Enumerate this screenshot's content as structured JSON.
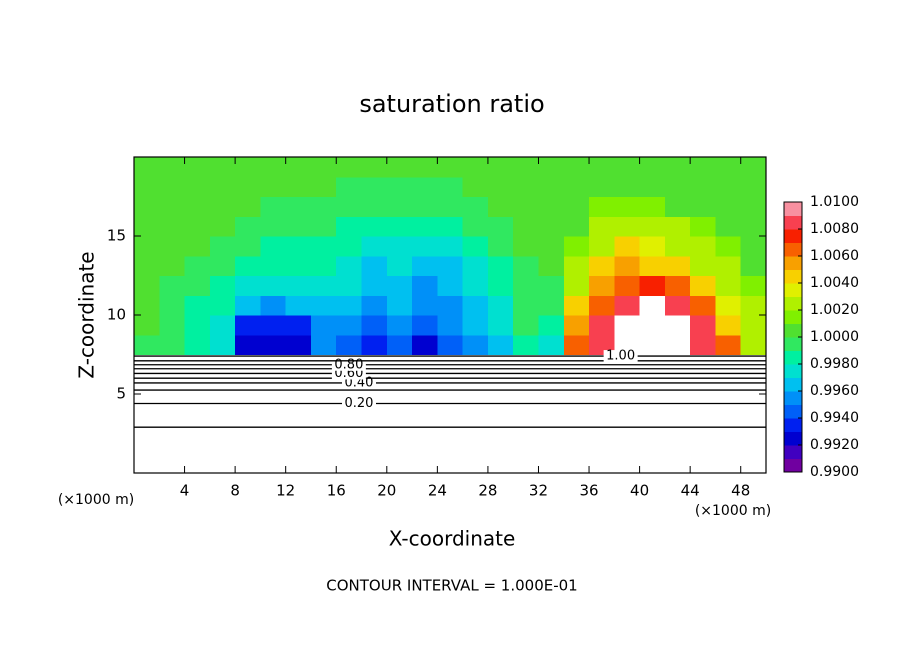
{
  "chart_data": {
    "type": "contour",
    "title": "saturation ratio",
    "x_label": "X-coordinate",
    "y_label": "Z-coordinate",
    "x_unit": "(×1000 m)",
    "y_unit": "(×1000 m)",
    "footnote": "CONTOUR INTERVAL = 1.000E-01",
    "xlim": [
      0,
      50
    ],
    "ylim": [
      0,
      20
    ],
    "xticks": [
      4,
      8,
      12,
      16,
      20,
      24,
      28,
      32,
      36,
      40,
      44,
      48
    ],
    "yticks": [
      5,
      10,
      15
    ],
    "x": [
      1,
      3,
      5,
      7,
      9,
      11,
      13,
      15,
      17,
      19,
      21,
      23,
      25,
      27,
      29,
      31,
      33,
      35,
      37,
      39,
      41,
      43,
      45,
      47,
      49
    ],
    "y": [
      8.125,
      9.375,
      10.625,
      11.875,
      13.125,
      14.375,
      15.625,
      16.875,
      18.125,
      19.375
    ],
    "z": [
      [
        0.9995,
        0.999,
        0.9985,
        0.9975,
        0.9925,
        0.992,
        0.9925,
        0.995,
        0.9945,
        0.9935,
        0.994,
        0.9925,
        0.994,
        0.995,
        0.996,
        0.9985,
        0.9975,
        1.006,
        1.0085,
        1.012,
        1.012,
        1.012,
        1.009,
        1.006,
        1.003
      ],
      [
        1.0,
        0.999,
        0.998,
        0.9975,
        0.9935,
        0.993,
        0.9935,
        0.9955,
        0.995,
        0.9945,
        0.995,
        0.994,
        0.995,
        0.996,
        0.997,
        0.999,
        0.998,
        1.0055,
        1.008,
        1.011,
        1.012,
        1.0115,
        1.008,
        1.005,
        1.0025
      ],
      [
        1.0,
        0.9995,
        0.9985,
        0.998,
        0.996,
        0.9955,
        0.996,
        0.9965,
        0.996,
        0.9955,
        0.996,
        0.995,
        0.9955,
        0.9965,
        0.9975,
        0.9995,
        0.999,
        1.0045,
        1.007,
        1.009,
        1.0105,
        1.0085,
        1.006,
        1.0035,
        1.002
      ],
      [
        1.0,
        0.9995,
        0.999,
        0.9985,
        0.9975,
        0.997,
        0.9975,
        0.9975,
        0.997,
        0.996,
        0.9965,
        0.9955,
        0.996,
        0.997,
        0.998,
        0.9995,
        0.9995,
        1.003,
        1.0055,
        1.007,
        1.0075,
        1.006,
        1.004,
        1.0025,
        1.0015
      ],
      [
        1.0,
        1.0,
        0.9995,
        0.999,
        0.9985,
        0.998,
        0.998,
        0.998,
        0.9975,
        0.9965,
        0.997,
        0.996,
        0.9965,
        0.9975,
        0.9985,
        0.9995,
        1.0,
        1.002,
        1.0045,
        1.0055,
        1.005,
        1.004,
        1.003,
        1.002,
        1.001
      ],
      [
        1.0,
        1.0,
        1.0,
        0.9995,
        0.999,
        0.9985,
        0.9985,
        0.9985,
        0.998,
        0.9975,
        0.9975,
        0.997,
        0.9975,
        0.998,
        0.999,
        1.0,
        1.0005,
        1.0015,
        1.003,
        1.004,
        1.0035,
        1.003,
        1.002,
        1.0015,
        1.001
      ],
      [
        1.0,
        1.0,
        1.0,
        1.0,
        0.9995,
        0.999,
        0.999,
        0.999,
        0.9985,
        0.9985,
        0.9985,
        0.998,
        0.9985,
        0.999,
        0.9995,
        1.0,
        1.0005,
        1.001,
        1.002,
        1.0025,
        1.0025,
        1.002,
        1.0015,
        1.001,
        1.0005
      ],
      [
        1.0,
        1.0,
        1.0,
        1.0,
        1.0,
        0.9995,
        0.9995,
        0.9995,
        0.999,
        0.999,
        0.999,
        0.999,
        0.999,
        0.9995,
        1.0,
        1.0,
        1.0005,
        1.001,
        1.0015,
        1.0015,
        1.0015,
        1.001,
        1.001,
        1.0005,
        1.0005
      ],
      [
        1.0,
        1.0,
        1.0,
        1.0,
        1.0,
        1.0,
        1.0,
        1.0,
        0.9995,
        0.9995,
        0.9995,
        0.9995,
        0.9995,
        1.0,
        1.0,
        1.0,
        1.0005,
        1.0005,
        1.001,
        1.001,
        1.001,
        1.0005,
        1.0005,
        1.0005,
        1.0
      ],
      [
        1.0,
        1.0,
        1.0,
        1.0,
        1.0,
        1.0,
        1.0,
        1.0,
        1.0,
        1.0,
        1.0,
        1.0,
        1.0,
        1.0,
        1.0,
        1.0,
        1.0005,
        1.0005,
        1.0005,
        1.0005,
        1.0005,
        1.0005,
        1.0,
        1.0,
        1.0
      ]
    ],
    "clim": [
      0.99,
      1.01
    ],
    "colors": [
      "#7000a0",
      "#4000c0",
      "#0000d0",
      "#0020f0",
      "#0060f8",
      "#0090f8",
      "#00c0f0",
      "#00e0d0",
      "#00f0a0",
      "#30e860",
      "#50e030",
      "#80f000",
      "#b0f000",
      "#e0f000",
      "#f8d000",
      "#f8a000",
      "#f86000",
      "#f82000",
      "#f84050",
      "#f890a0"
    ],
    "over_color": "#ffffff",
    "colorbar_ticks": [
      {
        "value": 0.99,
        "label": "0.9900"
      },
      {
        "value": 0.992,
        "label": "0.9920"
      },
      {
        "value": 0.994,
        "label": "0.9940"
      },
      {
        "value": 0.996,
        "label": "0.9960"
      },
      {
        "value": 0.998,
        "label": "0.9980"
      },
      {
        "value": 1.0,
        "label": "1.0000"
      },
      {
        "value": 1.002,
        "label": "1.0020"
      },
      {
        "value": 1.004,
        "label": "1.0040"
      },
      {
        "value": 1.006,
        "label": "1.0060"
      },
      {
        "value": 1.008,
        "label": "1.0080"
      },
      {
        "value": 1.01,
        "label": "1.0100"
      }
    ],
    "contours": [
      {
        "level": 0.1,
        "z": 2.9
      },
      {
        "level": 0.2,
        "z": 4.4,
        "label": "0.20"
      },
      {
        "level": 0.3,
        "z": 5.25
      },
      {
        "level": 0.4,
        "z": 5.7,
        "label": "0.40"
      },
      {
        "level": 0.5,
        "z": 6.0
      },
      {
        "level": 0.6,
        "z": 6.3,
        "label": "0.60"
      },
      {
        "level": 0.7,
        "z": 6.6
      },
      {
        "level": 0.8,
        "z": 6.85,
        "label": "0.80"
      },
      {
        "level": 0.9,
        "z": 7.1
      },
      {
        "level": 1.0,
        "z": 7.4,
        "label": "1.00"
      }
    ]
  }
}
